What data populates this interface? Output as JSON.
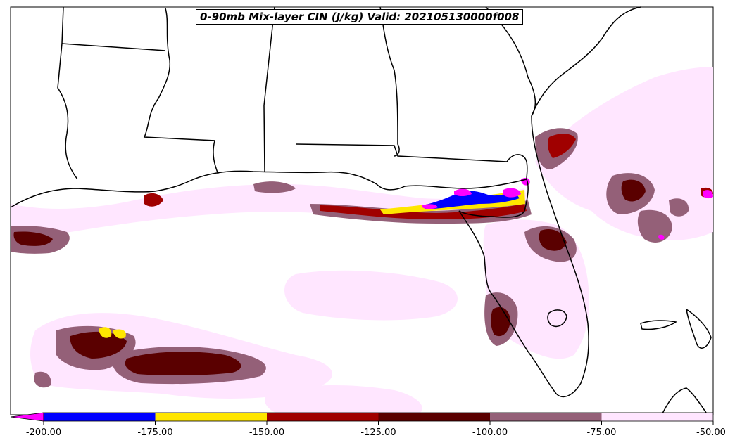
{
  "title": "0-90mb Mix-layer CIN (J/kg) Valid: 202105130000f008",
  "colorbar": {
    "tick_labels": [
      "-200.00",
      "-175.00",
      "-150.00",
      "-125.00",
      "-100.00",
      "-75.00",
      "-50.00"
    ],
    "bins": [
      {
        "range": "< -200",
        "color": "#ff00ff"
      },
      {
        "range": "-200 to -175",
        "color": "#0000ff"
      },
      {
        "range": "-175 to -150",
        "color": "#ffe600"
      },
      {
        "range": "-150 to -125",
        "color": "#a00000"
      },
      {
        "range": "-125 to -100",
        "color": "#5a0000"
      },
      {
        "range": "-100 to -75",
        "color": "#946078"
      },
      {
        "range": "-75 to -50",
        "color": "#ffe6ff"
      }
    ],
    "extend": "min"
  }
}
